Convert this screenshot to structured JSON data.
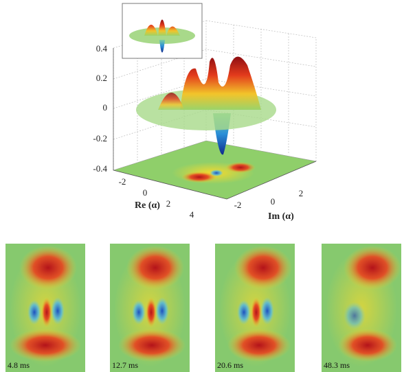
{
  "surface_plot": {
    "z_ticks": [
      "0.4",
      "0.2",
      "0",
      "-0.2",
      "-0.4"
    ],
    "re_ticks": [
      "-2",
      "0",
      "2",
      "4"
    ],
    "im_ticks": [
      "-2",
      "0",
      "2"
    ],
    "re_label": "Re (α)",
    "im_label": "Im (α)"
  },
  "panels": [
    {
      "time": "4.8 ms"
    },
    {
      "time": "12.7 ms"
    },
    {
      "time": "20.6 ms"
    },
    {
      "time": "48.3 ms"
    }
  ]
}
